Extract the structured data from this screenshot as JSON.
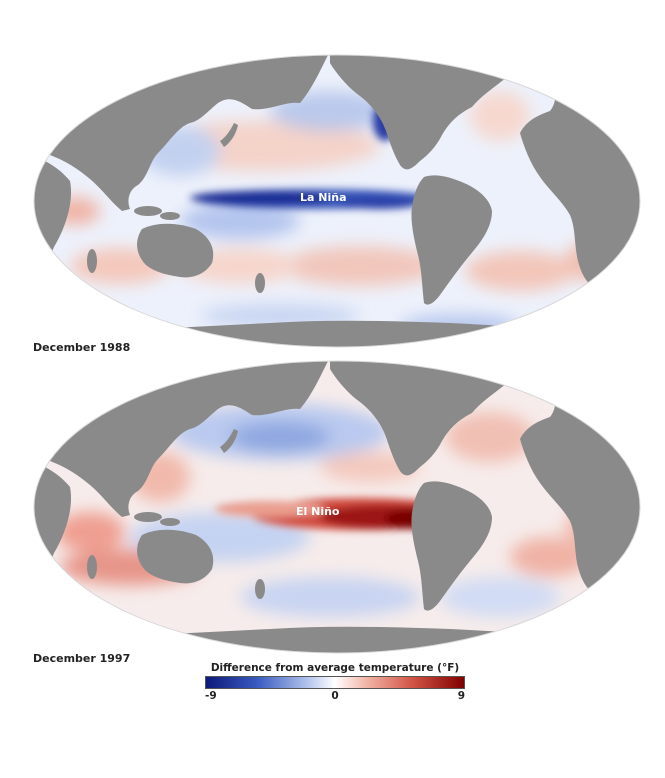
{
  "maps": [
    {
      "date": "December 1988",
      "label": "La Niña"
    },
    {
      "date": "December 1997",
      "label": "El Niño"
    }
  ],
  "legend": {
    "title": "Difference from average temperature (°F)",
    "min_label": "-9",
    "mid_label": "0",
    "max_label": "9"
  },
  "colors": {
    "land": "#8a8a8a",
    "cold": "#0c1a7a",
    "neutral": "#ffffff",
    "warm": "#800000"
  }
}
